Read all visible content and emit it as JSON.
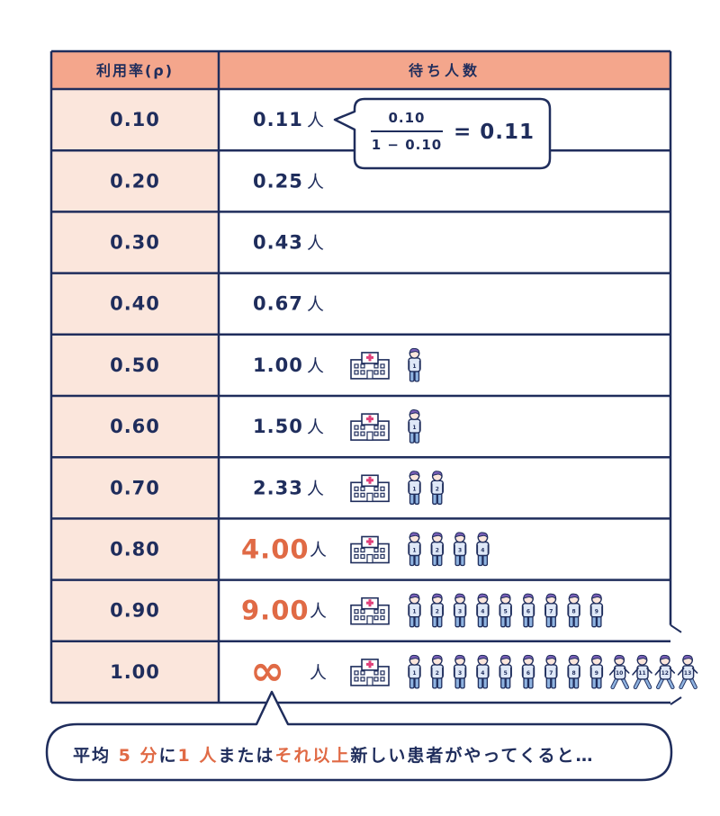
{
  "header": {
    "utilization_label": "利用率(ρ)",
    "waiting_label": "待ち人数"
  },
  "rows": [
    {
      "rho": "0.10",
      "waiting": "0.11",
      "unit": "人",
      "people": 0,
      "highlight": false
    },
    {
      "rho": "0.20",
      "waiting": "0.25",
      "unit": "人",
      "people": 0,
      "highlight": false
    },
    {
      "rho": "0.30",
      "waiting": "0.43",
      "unit": "人",
      "people": 0,
      "highlight": false
    },
    {
      "rho": "0.40",
      "waiting": "0.67",
      "unit": "人",
      "people": 0,
      "highlight": false
    },
    {
      "rho": "0.50",
      "waiting": "1.00",
      "unit": "人",
      "people": 1,
      "highlight": false
    },
    {
      "rho": "0.60",
      "waiting": "1.50",
      "unit": "人",
      "people": 1,
      "highlight": false
    },
    {
      "rho": "0.70",
      "waiting": "2.33",
      "unit": "人",
      "people": 2,
      "highlight": false
    },
    {
      "rho": "0.80",
      "waiting": "4.00",
      "unit": "人",
      "people": 4,
      "highlight": true
    },
    {
      "rho": "0.90",
      "waiting": "9.00",
      "unit": "人",
      "people": 9,
      "highlight": true
    },
    {
      "rho": "1.00",
      "waiting": "∞",
      "unit": "人",
      "people": 13,
      "highlight": true
    }
  ],
  "formula": {
    "numerator": "0.10",
    "denominator": "1 − 0.10",
    "result": "= 0.11"
  },
  "caption": [
    {
      "text": "平均 ",
      "accent": false
    },
    {
      "text": "5 分",
      "accent": true
    },
    {
      "text": "に",
      "accent": false
    },
    {
      "text": "1 人",
      "accent": true
    },
    {
      "text": "または",
      "accent": false
    },
    {
      "text": "それ以上",
      "accent": true
    },
    {
      "text": "新しい患者がやってくると…",
      "accent": false
    }
  ],
  "colors": {
    "navy": "#1f2d5c",
    "header_fill": "#f4a68c",
    "first_col_fill": "#fbe6dc",
    "accent": "#e06a45",
    "person_hair": "#7a5fb8",
    "person_shirt": "#dfe8f7",
    "person_pants": "#8fb3e0",
    "hospital_cross": "#e0417a"
  },
  "icons": {
    "hospital": "hospital-icon",
    "person": "patient-icon"
  }
}
